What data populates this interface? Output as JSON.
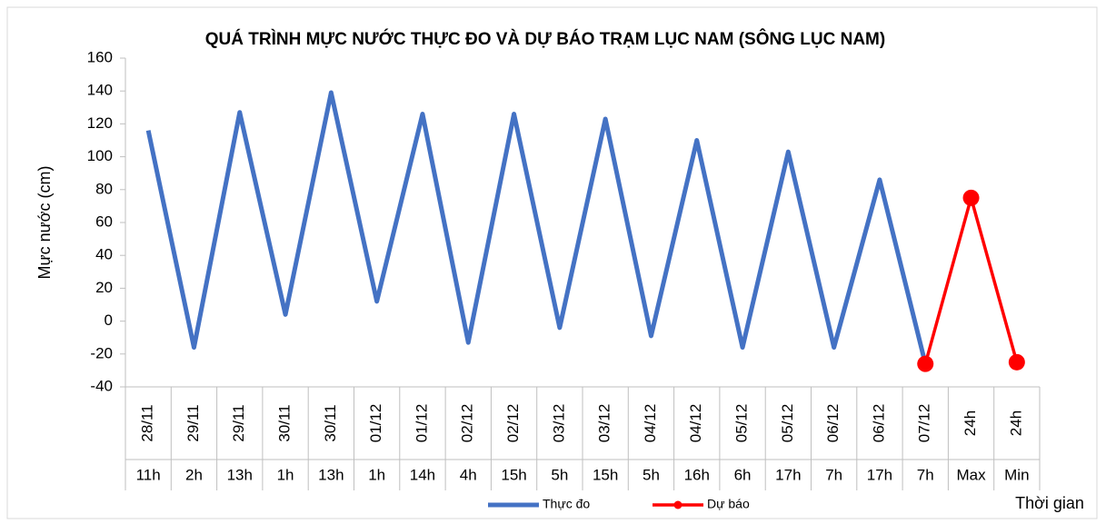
{
  "chart_data": {
    "type": "line",
    "title": "QUÁ TRÌNH MỰC NƯỚC THỰC ĐO VÀ DỰ BÁO TRẠM LỤC NAM (SÔNG LỤC NAM)",
    "y_label": "Mực nước (cm)",
    "x_label": "Thời gian",
    "category_dates": [
      "28/11",
      "29/11",
      "29/11",
      "30/11",
      "30/11",
      "01/12",
      "01/12",
      "02/12",
      "02/12",
      "03/12",
      "03/12",
      "04/12",
      "04/12",
      "05/12",
      "05/12",
      "06/12",
      "06/12",
      "07/12",
      "24h",
      "24h"
    ],
    "categories": [
      "11h",
      "2h",
      "13h",
      "1h",
      "13h",
      "1h",
      "14h",
      "4h",
      "15h",
      "5h",
      "15h",
      "5h",
      "16h",
      "6h",
      "17h",
      "7h",
      "17h",
      "7h",
      "Max",
      "Min"
    ],
    "series": [
      {
        "name": "Thực đo",
        "color": "#4472c4",
        "values": [
          116,
          -16,
          127,
          4,
          139,
          12,
          126,
          -13,
          126,
          -4,
          123,
          -9,
          110,
          -16,
          103,
          -16,
          86,
          -26,
          null,
          null
        ]
      },
      {
        "name": "Dự báo",
        "color": "#ff0000",
        "values": [
          null,
          null,
          null,
          null,
          null,
          null,
          null,
          null,
          null,
          null,
          null,
          null,
          null,
          null,
          null,
          null,
          null,
          -26,
          75,
          -25
        ]
      }
    ],
    "ylim": [
      -40,
      160
    ],
    "yticks": [
      -40,
      -20,
      0,
      20,
      40,
      60,
      80,
      100,
      120,
      140,
      160
    ]
  }
}
